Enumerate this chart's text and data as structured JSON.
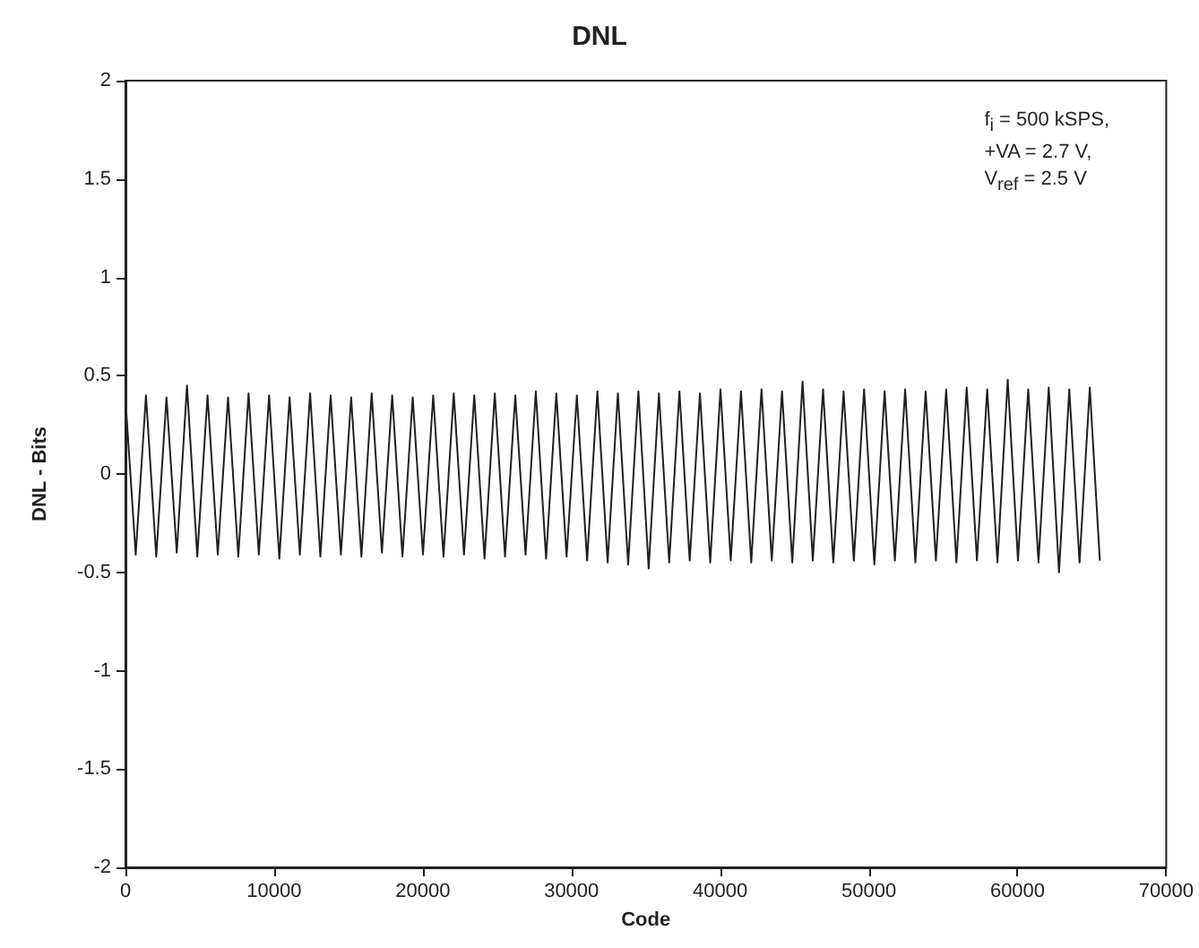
{
  "chart_data": {
    "type": "line",
    "title": "DNL",
    "xlabel": "Code",
    "ylabel": "DNL - Bits",
    "annotations": [
      "f$_{i}$ = 500 kSPS,",
      "+VA = 2.7 V,",
      "V$_{ref}$ = 2.5 V"
    ],
    "xlim": [
      0,
      70000
    ],
    "xticks": [
      0,
      10000,
      20000,
      30000,
      40000,
      50000,
      60000,
      70000
    ],
    "ylim": [
      -2,
      2
    ],
    "yticks": [
      -2,
      -1.5,
      -1,
      -0.5,
      0,
      0.5,
      1,
      1.5,
      2
    ],
    "grid": false,
    "marker": "none",
    "line_style": "solid",
    "series": [
      {
        "color": "#231f20",
        "x": [
          0,
          690,
          1380,
          2070,
          2760,
          3450,
          4140,
          4830,
          5520,
          6210,
          6900,
          7590,
          8280,
          8970,
          9660,
          10350,
          11040,
          11730,
          12420,
          13110,
          13800,
          14490,
          15180,
          15870,
          16560,
          17250,
          17940,
          18630,
          19320,
          20010,
          20700,
          21390,
          22080,
          22770,
          23460,
          24150,
          24840,
          25530,
          26220,
          26910,
          27600,
          28290,
          28980,
          29670,
          30360,
          31050,
          31740,
          32430,
          33120,
          33810,
          34500,
          35190,
          35880,
          36570,
          37260,
          37950,
          38640,
          39330,
          40020,
          40710,
          41400,
          42090,
          42780,
          43470,
          44160,
          44850,
          45540,
          46230,
          46920,
          47610,
          48300,
          48990,
          49680,
          50370,
          51060,
          51750,
          52440,
          53130,
          53820,
          54510,
          55200,
          55890,
          56580,
          57270,
          57960,
          58650,
          59340,
          60030,
          60720,
          61410,
          62100,
          62790,
          63480,
          64170,
          64860,
          65535
        ],
        "values": [
          0.38,
          -0.41,
          0.4,
          -0.42,
          0.39,
          -0.4,
          0.45,
          -0.42,
          0.4,
          -0.41,
          0.39,
          -0.42,
          0.41,
          -0.41,
          0.4,
          -0.43,
          0.39,
          -0.41,
          0.41,
          -0.42,
          0.4,
          -0.41,
          0.39,
          -0.42,
          0.41,
          -0.4,
          0.4,
          -0.42,
          0.39,
          -0.41,
          0.4,
          -0.42,
          0.41,
          -0.41,
          0.4,
          -0.43,
          0.41,
          -0.42,
          0.4,
          -0.41,
          0.42,
          -0.43,
          0.41,
          -0.42,
          0.4,
          -0.44,
          0.42,
          -0.45,
          0.41,
          -0.46,
          0.42,
          -0.48,
          0.41,
          -0.45,
          0.42,
          -0.44,
          0.41,
          -0.45,
          0.43,
          -0.44,
          0.42,
          -0.45,
          0.43,
          -0.44,
          0.42,
          -0.45,
          0.47,
          -0.44,
          0.43,
          -0.45,
          0.42,
          -0.44,
          0.43,
          -0.46,
          0.42,
          -0.44,
          0.43,
          -0.45,
          0.42,
          -0.44,
          0.43,
          -0.45,
          0.44,
          -0.44,
          0.43,
          -0.45,
          0.48,
          -0.44,
          0.43,
          -0.45,
          0.44,
          -0.5,
          0.43,
          -0.45,
          0.44,
          -0.44
        ]
      }
    ]
  }
}
